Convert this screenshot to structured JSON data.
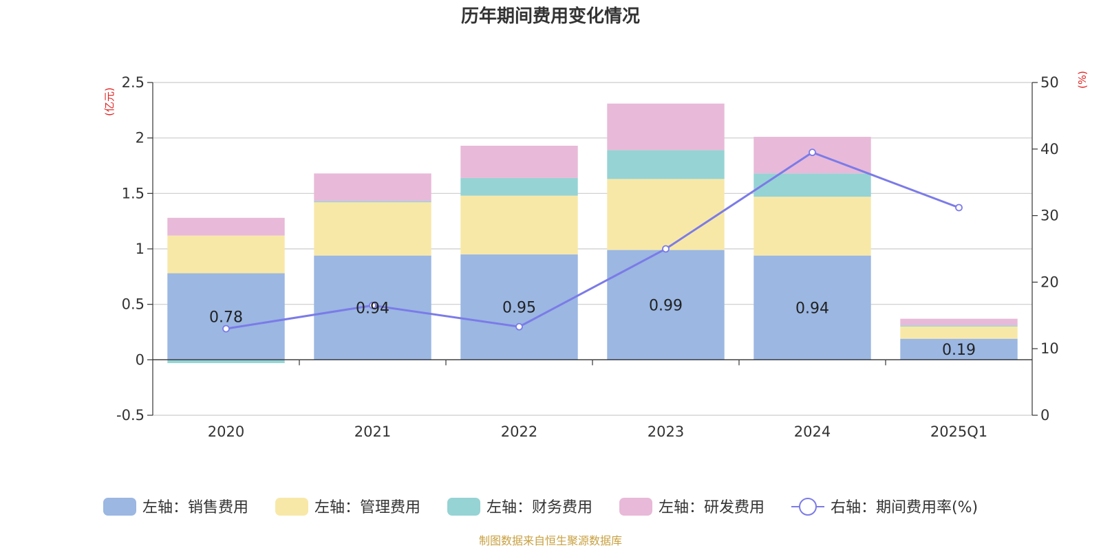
{
  "chart_data": {
    "type": "bar",
    "title": "历年期间费用变化情况",
    "categories": [
      "2020",
      "2021",
      "2022",
      "2023",
      "2024",
      "2025Q1"
    ],
    "y_left": {
      "unit_label": "(亿元)",
      "range": [
        -0.5,
        2.5
      ],
      "ticks": [
        "-0.5",
        "0",
        "0.5",
        "1",
        "1.5",
        "2",
        "2.5"
      ]
    },
    "y_right": {
      "unit_label": "(%)",
      "range": [
        0,
        50
      ],
      "ticks": [
        "0",
        "10",
        "20",
        "30",
        "40",
        "50"
      ]
    },
    "grid": true,
    "legend_position": "bottom",
    "series": [
      {
        "name": "左轴：销售费用",
        "type": "bar",
        "axis": "left",
        "color": "#9bb7e2",
        "values": [
          0.78,
          0.94,
          0.95,
          0.99,
          0.94,
          0.19
        ],
        "data_labels": [
          "0.78",
          "0.94",
          "0.95",
          "0.99",
          "0.94",
          "0.19"
        ]
      },
      {
        "name": "左轴：管理费用",
        "type": "bar",
        "axis": "left",
        "color": "#f8e8a8",
        "values": [
          0.34,
          0.48,
          0.53,
          0.64,
          0.53,
          0.11
        ]
      },
      {
        "name": "左轴：财务费用",
        "type": "bar",
        "axis": "left",
        "color": "#96d3d4",
        "values": [
          -0.03,
          0.01,
          0.16,
          0.26,
          0.21,
          0.01
        ]
      },
      {
        "name": "左轴：研发费用",
        "type": "bar",
        "axis": "left",
        "color": "#e8b9d8",
        "values": [
          0.16,
          0.25,
          0.29,
          0.42,
          0.33,
          0.06
        ]
      },
      {
        "name": "右轴：期间费用率(%)",
        "type": "line",
        "axis": "right",
        "color": "#7b7be8",
        "values": [
          13,
          16.5,
          13.3,
          25,
          39.5,
          31.2
        ]
      }
    ],
    "source_note": "制图数据来自恒生聚源数据库"
  }
}
